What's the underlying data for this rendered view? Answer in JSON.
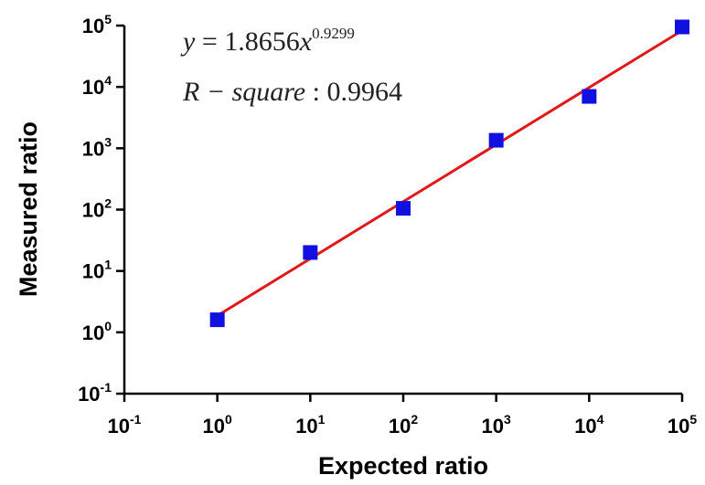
{
  "chart_data": {
    "type": "scatter",
    "xscale": "log",
    "yscale": "log",
    "xlim": [
      0.1,
      100000
    ],
    "ylim": [
      0.1,
      100000
    ],
    "xlabel": "Expected ratio",
    "ylabel": "Measured ratio",
    "x_ticks": [
      {
        "value": 0.1,
        "base": "10",
        "exp": "-1"
      },
      {
        "value": 1,
        "base": "10",
        "exp": "0"
      },
      {
        "value": 10,
        "base": "10",
        "exp": "1"
      },
      {
        "value": 100,
        "base": "10",
        "exp": "2"
      },
      {
        "value": 1000,
        "base": "10",
        "exp": "3"
      },
      {
        "value": 10000,
        "base": "10",
        "exp": "4"
      },
      {
        "value": 100000,
        "base": "10",
        "exp": "5"
      }
    ],
    "y_ticks": [
      {
        "value": 0.1,
        "base": "10",
        "exp": "-1"
      },
      {
        "value": 1,
        "base": "10",
        "exp": "0"
      },
      {
        "value": 10,
        "base": "10",
        "exp": "1"
      },
      {
        "value": 100,
        "base": "10",
        "exp": "2"
      },
      {
        "value": 1000,
        "base": "10",
        "exp": "3"
      },
      {
        "value": 10000,
        "base": "10",
        "exp": "4"
      },
      {
        "value": 100000,
        "base": "10",
        "exp": "5"
      }
    ],
    "points": {
      "x": [
        1,
        10,
        100,
        1000,
        10000,
        100000
      ],
      "y": [
        1.6,
        20,
        105,
        1350,
        7000,
        95000
      ],
      "color": "#1010e0",
      "marker": "square"
    },
    "fit": {
      "a": 1.8656,
      "b": 0.9299,
      "x_range": [
        1,
        100000
      ],
      "color": "#e01818"
    },
    "annotations": {
      "equation": {
        "lhs": "y",
        "eq": " = 1.8656",
        "var": "x",
        "exponent": "0.9299"
      },
      "rsquare": {
        "label": "R − square",
        "sep": " : ",
        "value": "0.9964"
      }
    },
    "grid": false
  }
}
